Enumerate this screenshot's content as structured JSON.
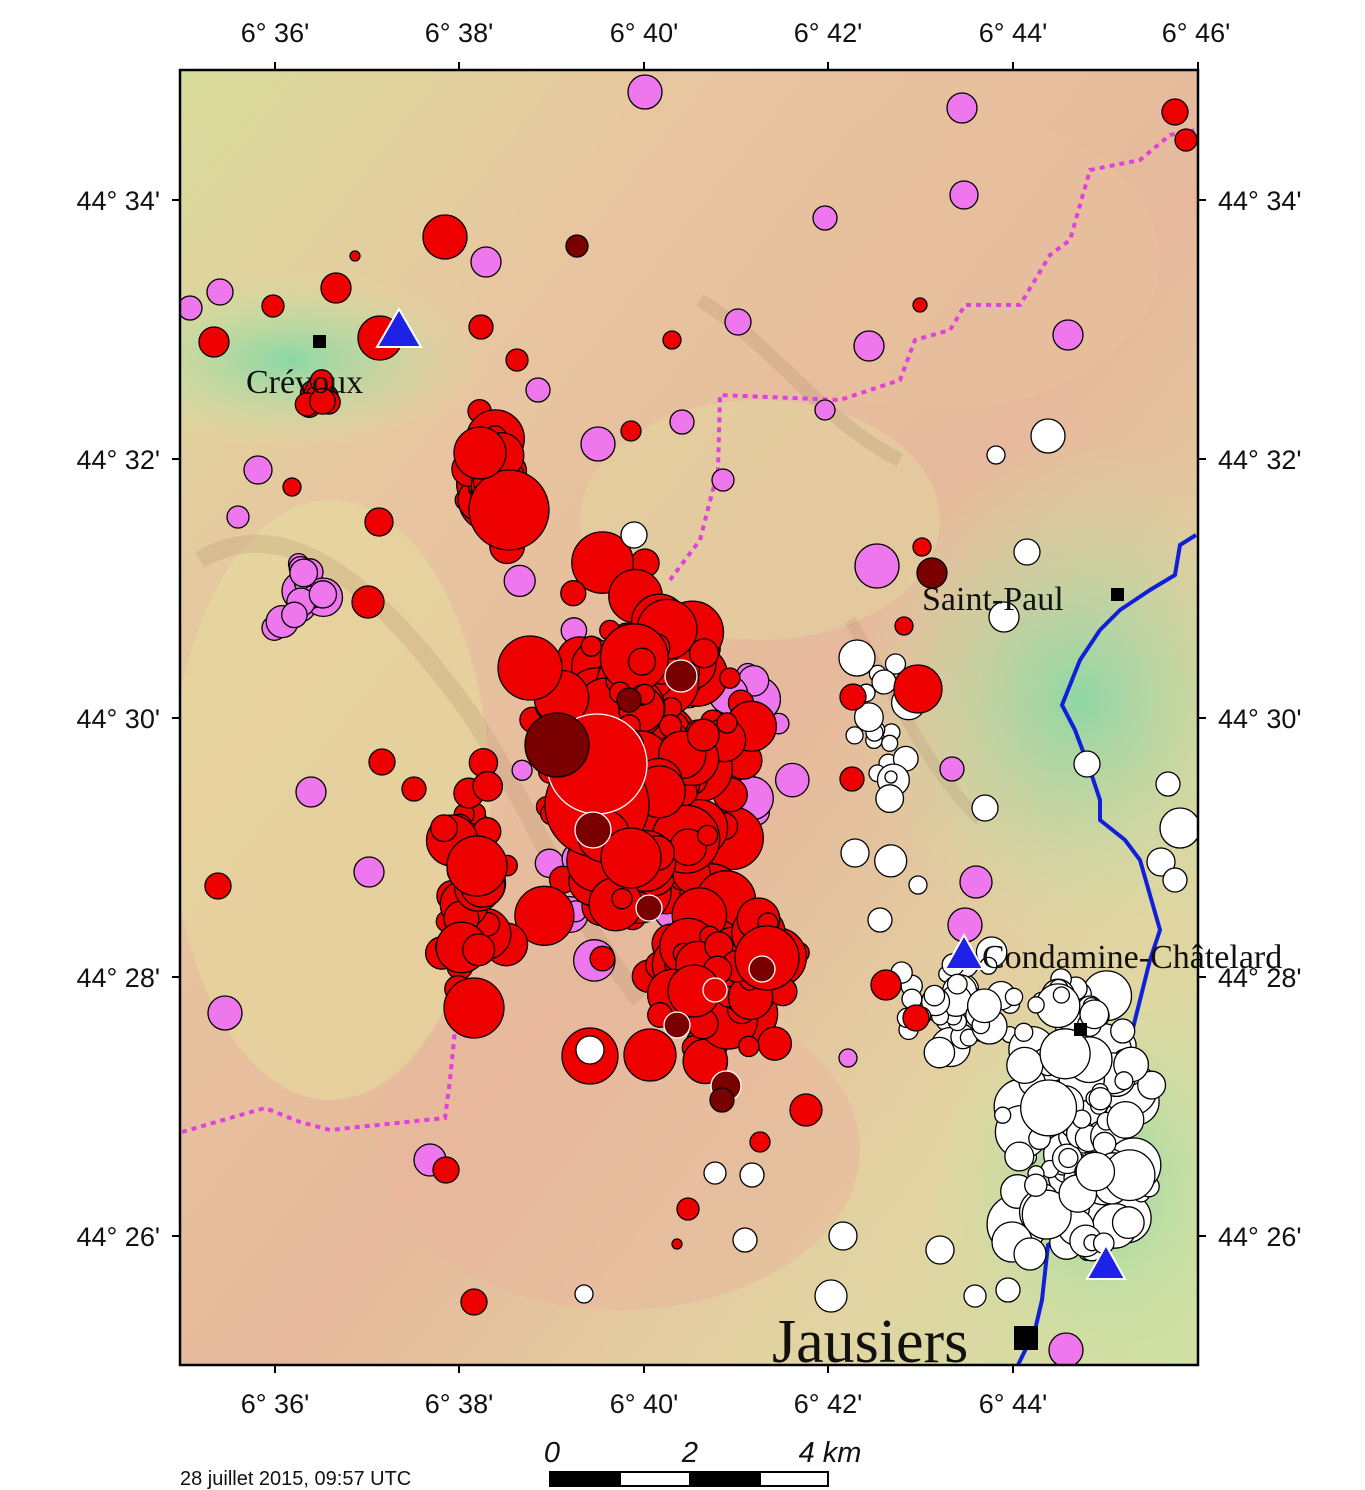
{
  "map": {
    "lon_ticks": [
      "6° 36'",
      "6° 38'",
      "6° 40'",
      "6° 42'",
      "6° 44'",
      "6° 46'"
    ],
    "lat_ticks": [
      "44° 34'",
      "44° 32'",
      "44° 30'",
      "44° 28'",
      "44° 26'"
    ],
    "places": [
      {
        "name": "Crévoux",
        "kind": "village"
      },
      {
        "name": "Saint-Paul",
        "kind": "village"
      },
      {
        "name": "Condamine-Châtelard",
        "kind": "village"
      },
      {
        "name": "Jausiers",
        "kind": "town"
      }
    ],
    "stations": [
      "station-crevoux",
      "station-condamine",
      "station-jausiers"
    ],
    "colors": {
      "recent_event": "#ee0000",
      "medium_event": "#ee77ee",
      "older_event": "#ffffff",
      "deep_event": "#7a0000",
      "station": "#1e22e6",
      "border": "#e040e0",
      "river": "#1020d8"
    }
  },
  "footer": {
    "timestamp": "28 juillet 2015, 09:57 UTC",
    "scale_labels": [
      "0",
      "2",
      "4 km"
    ]
  }
}
